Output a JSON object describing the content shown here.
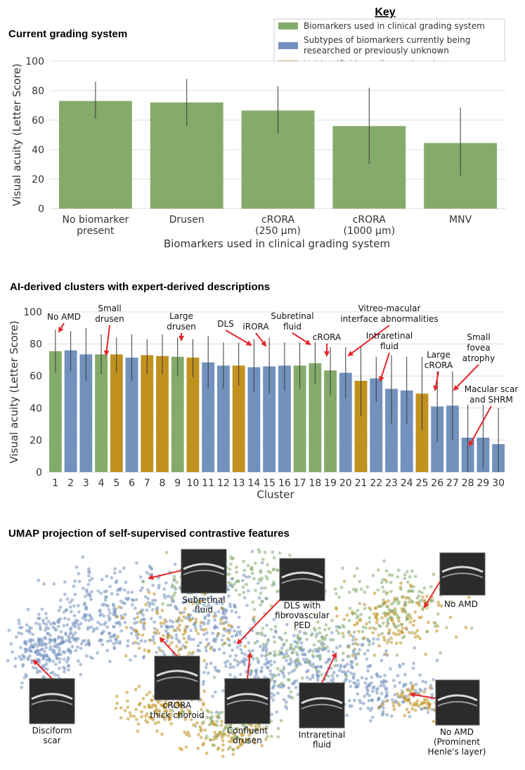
{
  "key": {
    "title": "Key",
    "items": [
      {
        "label_lines": [
          "Biomarkers used in clinical grading system"
        ],
        "color": "#85ab6b"
      },
      {
        "label_lines": [
          "Subtypes of biomarkers currently being",
          "researched or previously unknown"
        ],
        "color": "#7291bd"
      },
      {
        "label_lines": [
          "Unidentifiable or disease-invariant"
        ],
        "color": "#c1911f"
      }
    ]
  },
  "colors": {
    "green": "#85ab6b",
    "blue": "#7291bd",
    "gold": "#c1911f",
    "arrow": "#e3262a"
  },
  "chart_data": [
    {
      "type": "bar",
      "title": "Current grading system",
      "xlabel": "Biomarkers used in clinical grading system",
      "ylabel": "Visual acuity (Letter Score)",
      "ylim": [
        0,
        100
      ],
      "yticks": [
        "0",
        "20",
        "40",
        "60",
        "80",
        "100"
      ],
      "grid": true,
      "categories": [
        [
          "No biomarker",
          "present"
        ],
        [
          "Drusen"
        ],
        [
          "cRORA",
          "(250 µm)"
        ],
        [
          "cRORA",
          "(1000 µm)"
        ],
        [
          "MNV"
        ]
      ],
      "values": [
        73,
        72,
        66.5,
        56,
        44.5
      ],
      "error_low": [
        61,
        56,
        51,
        30.5,
        22
      ],
      "error_high": [
        86,
        88,
        83,
        82,
        68.5
      ],
      "bar_color": "green"
    },
    {
      "type": "bar",
      "title": "AI-derived clusters with expert-derived descriptions",
      "xlabel": "Cluster",
      "ylabel": "Visual acuity (Letter Score)",
      "ylim": [
        0,
        100
      ],
      "yticks": [
        "0",
        "20",
        "40",
        "60",
        "80",
        "100"
      ],
      "grid": true,
      "categories": [
        "1",
        "2",
        "3",
        "4",
        "5",
        "6",
        "7",
        "8",
        "9",
        "10",
        "11",
        "12",
        "13",
        "14",
        "15",
        "16",
        "17",
        "18",
        "19",
        "20",
        "21",
        "22",
        "23",
        "24",
        "25",
        "26",
        "27",
        "28",
        "29",
        "30"
      ],
      "values": [
        75.5,
        76,
        73.5,
        73.5,
        73.5,
        71.5,
        73,
        72.5,
        72,
        71.5,
        68.5,
        66.5,
        66.5,
        65.5,
        66,
        66.5,
        66.5,
        68,
        63.5,
        62,
        57,
        58.5,
        52,
        51,
        49,
        41,
        41.5,
        21.5,
        21.5,
        17.5
      ],
      "error_low": [
        62,
        63,
        57,
        61,
        62,
        57,
        61,
        61,
        60,
        59,
        52,
        52,
        54,
        50,
        49,
        51,
        52,
        55,
        48,
        46,
        35,
        44,
        30,
        30,
        26,
        19,
        20,
        0,
        2,
        0
      ],
      "error_high": [
        89,
        88,
        90,
        86,
        84,
        86,
        83,
        86,
        84,
        83,
        85,
        81,
        81,
        83,
        84,
        81,
        81,
        81,
        78,
        78,
        79,
        72,
        73,
        72,
        72,
        63,
        63,
        42,
        42,
        40
      ],
      "bar_colors": [
        "green",
        "blue",
        "blue",
        "green",
        "gold",
        "blue",
        "gold",
        "gold",
        "green",
        "gold",
        "blue",
        "blue",
        "gold",
        "blue",
        "blue",
        "blue",
        "green",
        "green",
        "green",
        "blue",
        "gold",
        "blue",
        "blue",
        "blue",
        "gold",
        "blue",
        "blue",
        "blue",
        "blue",
        "blue"
      ],
      "annotations": [
        {
          "lines": [
            "No AMD"
          ],
          "cluster": 1
        },
        {
          "lines": [
            "Small",
            "drusen"
          ],
          "cluster": 4
        },
        {
          "lines": [
            "Large",
            "drusen"
          ],
          "cluster": 9
        },
        {
          "lines": [
            "DLS"
          ],
          "cluster": 14
        },
        {
          "lines": [
            "iRORA"
          ],
          "cluster": 15
        },
        {
          "lines": [
            "Subretinal",
            "fluid"
          ],
          "cluster": 18
        },
        {
          "lines": [
            "cRORA"
          ],
          "cluster": 19
        },
        {
          "lines": [
            "Vitreo-macular",
            "interface abnormalities"
          ],
          "cluster": 20
        },
        {
          "lines": [
            "Intraretinal",
            "fluid"
          ],
          "cluster": 22
        },
        {
          "lines": [
            "Large",
            "cRORA"
          ],
          "cluster": 26
        },
        {
          "lines": [
            "Small",
            "fovea",
            "atrophy"
          ],
          "cluster": 27
        },
        {
          "lines": [
            "Macular scar",
            "and SHRM"
          ],
          "cluster": 28
        }
      ]
    },
    {
      "type": "scatter",
      "title": "UMAP projection of self-supervised contrastive features",
      "axes_visible": false,
      "series": [
        {
          "name": "Biomarkers used in clinical grading system",
          "color": "green"
        },
        {
          "name": "Subtypes of biomarkers currently being researched or previously unknown",
          "color": "blue"
        },
        {
          "name": "Unidentifiable or disease-invariant",
          "color": "gold"
        }
      ],
      "annotations": [
        {
          "lines": [
            "Subretinal",
            "fluid"
          ]
        },
        {
          "lines": [
            "DLS with",
            "fibrovascular",
            "PED"
          ]
        },
        {
          "lines": [
            "No AMD"
          ]
        },
        {
          "lines": [
            "Disciform",
            "scar"
          ]
        },
        {
          "lines": [
            "cRORA",
            "thick choroid"
          ]
        },
        {
          "lines": [
            "Confluent",
            "drusen"
          ]
        },
        {
          "lines": [
            "Intraretinal",
            "fluid"
          ]
        },
        {
          "lines": [
            "No AMD",
            "(Prominent",
            "Henle's layer)"
          ]
        }
      ]
    }
  ]
}
